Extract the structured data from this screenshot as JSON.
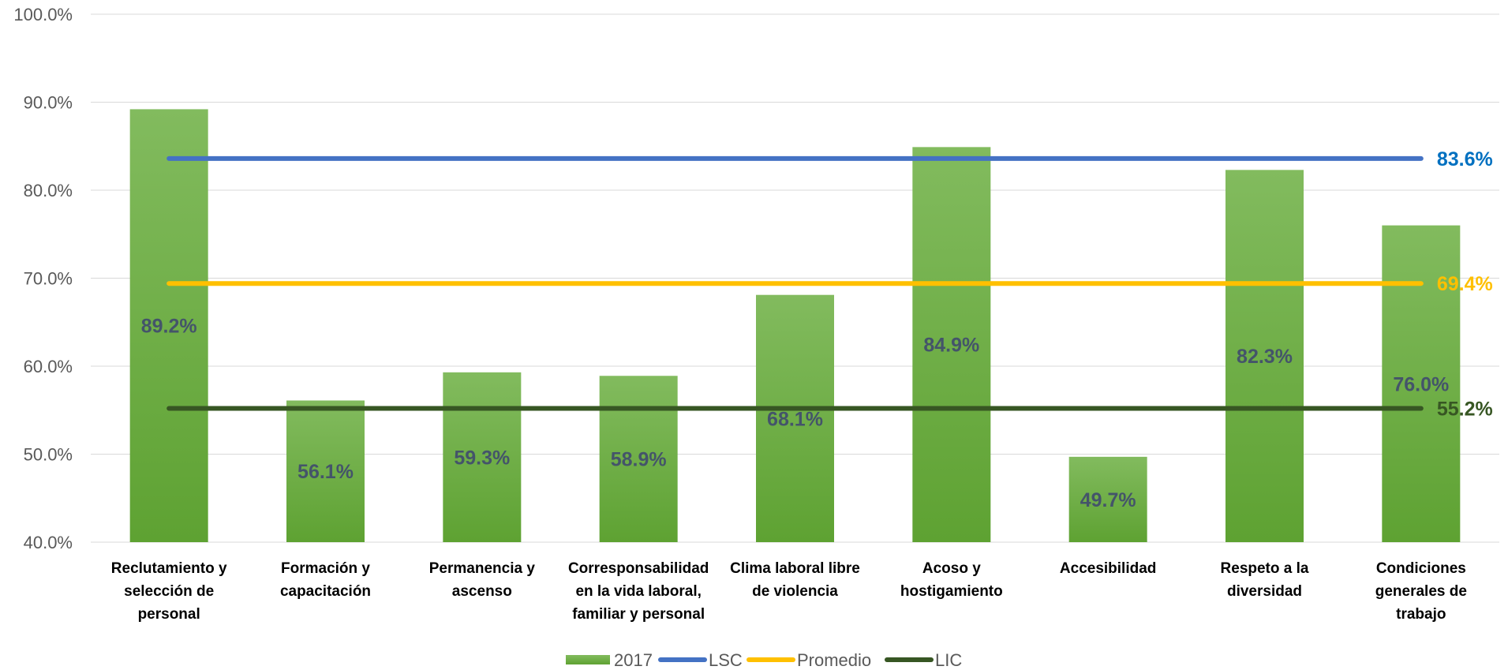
{
  "chart_data": {
    "type": "bar",
    "categories": [
      [
        "Reclutamiento y",
        "selección de",
        "personal"
      ],
      [
        "Formación y",
        "capacitación"
      ],
      [
        "Permanencia y",
        "ascenso"
      ],
      [
        "Corresponsabilidad",
        "en la vida laboral,",
        "familiar y personal"
      ],
      [
        "Clima laboral libre",
        "de violencia"
      ],
      [
        "Acoso y",
        "hostigamiento"
      ],
      [
        "Accesibilidad"
      ],
      [
        "Respeto a la",
        "diversidad"
      ],
      [
        "Condiciones",
        "generales de",
        "trabajo"
      ]
    ],
    "series": [
      {
        "name": "2017",
        "type": "bar",
        "color": "#70AD47",
        "values": [
          89.2,
          56.1,
          59.3,
          58.9,
          68.1,
          84.9,
          49.7,
          82.3,
          76.0
        ],
        "labels": [
          "89.2%",
          "56.1%",
          "59.3%",
          "58.9%",
          "68.1%",
          "84.9%",
          "49.7%",
          "82.3%",
          "76.0%"
        ]
      },
      {
        "name": "LSC",
        "type": "line",
        "color": "#4472C4",
        "value": 83.6,
        "label": "83.6%",
        "label_color": "#0070C0"
      },
      {
        "name": "Promedio",
        "type": "line",
        "color": "#FFC000",
        "value": 69.4,
        "label": "69.4%",
        "label_color": "#FFC000"
      },
      {
        "name": "LIC",
        "type": "line",
        "color": "#375623",
        "value": 55.2,
        "label": "55.2%",
        "label_color": "#375623"
      }
    ],
    "y_ticks": [
      "40.0%",
      "50.0%",
      "60.0%",
      "70.0%",
      "80.0%",
      "90.0%",
      "100.0%"
    ],
    "ylim": [
      40,
      100
    ],
    "grid": true,
    "legend": "bottom",
    "title": "",
    "xlabel": "",
    "ylabel": ""
  }
}
